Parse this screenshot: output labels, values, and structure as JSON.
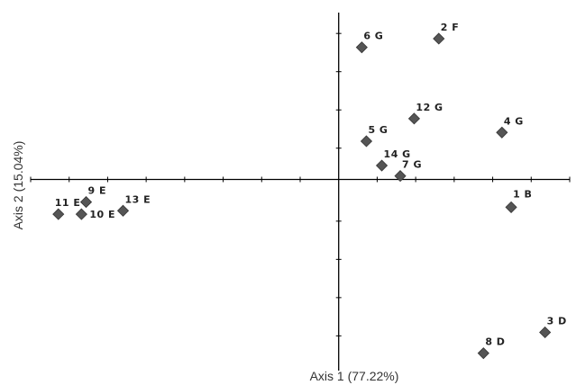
{
  "chart_data": {
    "type": "scatter",
    "xlabel": "Axis 1 (77.22%)",
    "ylabel": "Axis 2 (15.04%)",
    "xlim": [
      -1.0,
      0.75
    ],
    "ylim": [
      -0.55,
      0.48
    ],
    "x_ticks": [
      -1.0,
      -0.875,
      -0.75,
      -0.625,
      -0.5,
      -0.375,
      -0.25,
      -0.125,
      0.125,
      0.25,
      0.375,
      0.5,
      0.625,
      0.75
    ],
    "y_ticks": [
      -0.45,
      -0.34,
      -0.23,
      -0.12,
      0.09,
      0.2,
      0.31,
      0.42
    ],
    "grid": false,
    "marker_color": "#555555",
    "points": [
      {
        "label": "1 B",
        "x": 0.56,
        "y": -0.08
      },
      {
        "label": "2 F",
        "x": 0.325,
        "y": 0.405
      },
      {
        "label": "3 D",
        "x": 0.67,
        "y": -0.44
      },
      {
        "label": "4 G",
        "x": 0.53,
        "y": 0.135
      },
      {
        "label": "5 G",
        "x": 0.09,
        "y": 0.11
      },
      {
        "label": "6 G",
        "x": 0.075,
        "y": 0.38
      },
      {
        "label": "7 G",
        "x": 0.2,
        "y": 0.01
      },
      {
        "label": "8 D",
        "x": 0.47,
        "y": -0.5
      },
      {
        "label": "9 E",
        "x": -0.82,
        "y": -0.065
      },
      {
        "label": "10 E",
        "x": -0.835,
        "y": -0.1
      },
      {
        "label": "11 E",
        "x": -0.91,
        "y": -0.1
      },
      {
        "label": "12 G",
        "x": 0.245,
        "y": 0.175
      },
      {
        "label": "13 E",
        "x": -0.7,
        "y": -0.09
      },
      {
        "label": "14 G",
        "x": 0.14,
        "y": 0.04
      }
    ]
  }
}
